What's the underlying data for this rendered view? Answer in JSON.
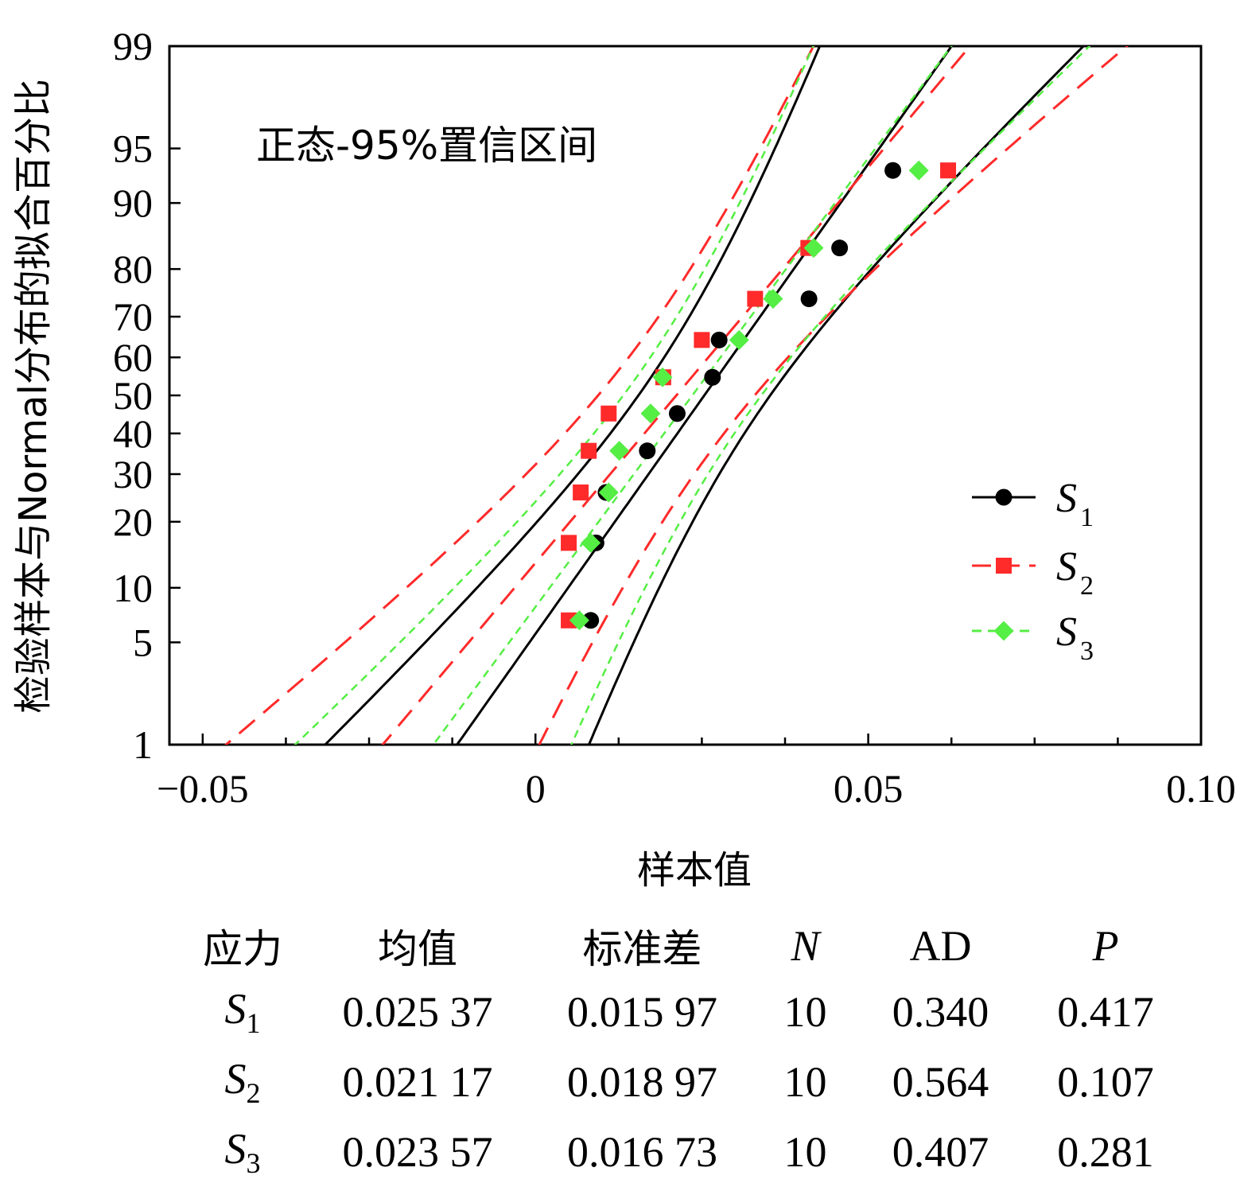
{
  "chart_data": {
    "type": "scatter",
    "title": "",
    "annotation": "正态-95%置信区间",
    "xlabel": "样本值",
    "ylabel": "检验样本与Normal分布的拟合百分比",
    "xlim": [
      -0.055,
      0.1
    ],
    "x_ticks": [
      -0.05,
      0,
      0.05,
      0.1
    ],
    "x_tick_labels": [
      "−0.05",
      "0",
      "0.05",
      "0.10"
    ],
    "y_scale": "normal-probability",
    "ylim": [
      1,
      99
    ],
    "y_ticks": [
      1,
      5,
      10,
      20,
      30,
      40,
      50,
      60,
      70,
      80,
      90,
      95,
      99
    ],
    "y_tick_labels": [
      "1",
      "5",
      "10",
      "20",
      "30",
      "40",
      "50",
      "60",
      "70",
      "80",
      "90",
      "95",
      "99"
    ],
    "legend_position": "center-right",
    "series": [
      {
        "name": "S",
        "subscript": "1",
        "color": "#000000",
        "marker": "circle",
        "line_style": "solid",
        "mean": 0.02537,
        "std": 0.01597,
        "points": [
          {
            "x": 0.0083,
            "p": 6.7
          },
          {
            "x": 0.0091,
            "p": 16.3
          },
          {
            "x": 0.0106,
            "p": 25.9
          },
          {
            "x": 0.0168,
            "p": 35.6
          },
          {
            "x": 0.0213,
            "p": 45.2
          },
          {
            "x": 0.0266,
            "p": 54.8
          },
          {
            "x": 0.0276,
            "p": 64.4
          },
          {
            "x": 0.0411,
            "p": 74.0
          },
          {
            "x": 0.0457,
            "p": 83.7
          },
          {
            "x": 0.0537,
            "p": 93.3
          }
        ]
      },
      {
        "name": "S",
        "subscript": "2",
        "color": "#ff2a2a",
        "marker": "square",
        "line_style": "long-dash",
        "mean": 0.02117,
        "std": 0.01897,
        "points": [
          {
            "x": 0.005,
            "p": 6.7
          },
          {
            "x": 0.005,
            "p": 16.3
          },
          {
            "x": 0.0068,
            "p": 25.9
          },
          {
            "x": 0.008,
            "p": 35.6
          },
          {
            "x": 0.011,
            "p": 45.2
          },
          {
            "x": 0.0192,
            "p": 54.8
          },
          {
            "x": 0.025,
            "p": 64.4
          },
          {
            "x": 0.033,
            "p": 74.0
          },
          {
            "x": 0.041,
            "p": 83.7
          },
          {
            "x": 0.062,
            "p": 93.3
          }
        ]
      },
      {
        "name": "S",
        "subscript": "3",
        "color": "#55ee44",
        "marker": "diamond",
        "line_style": "short-dash",
        "mean": 0.02357,
        "std": 0.01673,
        "points": [
          {
            "x": 0.0066,
            "p": 6.7
          },
          {
            "x": 0.0083,
            "p": 16.3
          },
          {
            "x": 0.011,
            "p": 25.9
          },
          {
            "x": 0.0126,
            "p": 35.6
          },
          {
            "x": 0.0173,
            "p": 45.2
          },
          {
            "x": 0.0191,
            "p": 54.8
          },
          {
            "x": 0.0306,
            "p": 64.4
          },
          {
            "x": 0.0357,
            "p": 74.0
          },
          {
            "x": 0.0418,
            "p": 83.7
          },
          {
            "x": 0.0576,
            "p": 93.3
          }
        ]
      }
    ]
  },
  "stats_table": {
    "headers": [
      "应力",
      "均值",
      "标准差",
      "N",
      "AD",
      "P"
    ],
    "rows": [
      {
        "stress": "S",
        "sub": "1",
        "mean": "0.025 37",
        "std": "0.015 97",
        "n": "10",
        "ad": "0.340",
        "p": "0.417"
      },
      {
        "stress": "S",
        "sub": "2",
        "mean": "0.021 17",
        "std": "0.018 97",
        "n": "10",
        "ad": "0.564",
        "p": "0.107"
      },
      {
        "stress": "S",
        "sub": "3",
        "mean": "0.023 57",
        "std": "0.016 73",
        "n": "10",
        "ad": "0.407",
        "p": "0.281"
      }
    ]
  }
}
